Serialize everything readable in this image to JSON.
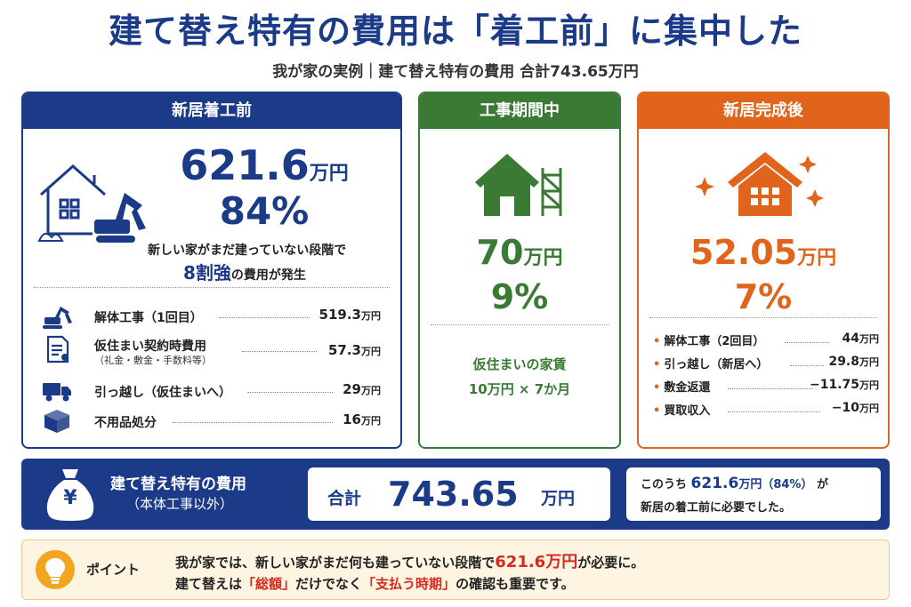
{
  "title": "建て替え特有の費用は「着工前」に集中した",
  "subtitle": "我が家の実例｜建て替え特有の費用 合計743.65万円",
  "before": {
    "header": "新居着工前",
    "amount": "621.6",
    "unit": "万円",
    "percent": "84%",
    "desc1": "新しい家がまだ建っていない段階で",
    "desc2_em": "8割強",
    "desc2_rest": "の費用が発生",
    "items": [
      {
        "icon": "excavator-icon",
        "label": "解体工事（1回目）",
        "sub": "",
        "value": "519.3",
        "unit": "万円"
      },
      {
        "icon": "contract-document-icon",
        "label": "仮住まい契約時費用",
        "sub": "（礼金・敷金・手数料等）",
        "value": "57.3",
        "unit": "万円"
      },
      {
        "icon": "truck-icon",
        "label": "引っ越し（仮住まいへ）",
        "sub": "",
        "value": "29",
        "unit": "万円"
      },
      {
        "icon": "box-icon",
        "label": "不用品処分",
        "sub": "",
        "value": "16",
        "unit": "万円"
      }
    ]
  },
  "during": {
    "header": "工事期間中",
    "amount": "70",
    "unit": "万円",
    "percent": "9%",
    "note1": "仮住まいの家賃",
    "note2": "10万円 × 7か月"
  },
  "after": {
    "header": "新居完成後",
    "amount": "52.05",
    "unit": "万円",
    "percent": "7%",
    "bullet": "•",
    "items": [
      {
        "label": "解体工事（2回目）",
        "value": "44",
        "unit": "万円"
      },
      {
        "label": "引っ越し（新居へ）",
        "value": "29.8",
        "unit": "万円"
      },
      {
        "label": "敷金返還",
        "value": "−11.75",
        "unit": "万円"
      },
      {
        "label": "買取収入",
        "value": "−10",
        "unit": "万円"
      }
    ]
  },
  "total": {
    "icon": "money-bag-yen-icon",
    "yen": "¥",
    "label1": "建て替え特有の費用",
    "label2": "（本体工事以外）",
    "sum_label": "合計",
    "sum_value": "743.65",
    "sum_unit": "万円",
    "note_pre": "このうち",
    "note_amount": "621.6",
    "note_unit": "万円（84%）",
    "note_post": "が",
    "note_line2": "新居の着工前に必要でした。"
  },
  "point": {
    "icon": "lightbulb-icon",
    "label": "ポイント",
    "line1_pre": "我が家では、新しい家がまだ何も建っていない段階で",
    "line1_em": "621.6万円",
    "line1_post": "が必要に。",
    "line2_a": "建て替えは",
    "line2_b": "「総額」",
    "line2_c": "だけでなく",
    "line2_d": "「支払う時期」",
    "line2_e": "の確認も重要です。"
  },
  "colors": {
    "navy": "#1b3a87",
    "green": "#3a7a35",
    "orange": "#e0641c",
    "red": "#d62a1e"
  }
}
